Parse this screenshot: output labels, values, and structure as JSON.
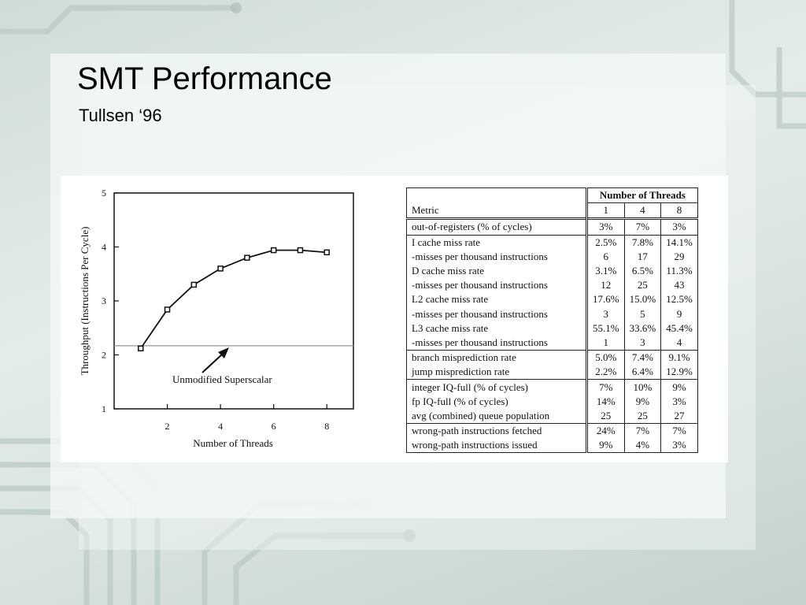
{
  "slide": {
    "title": "SMT Performance",
    "subtitle": "Tullsen ‘96"
  },
  "chart_data": {
    "type": "line",
    "xlabel": "Number of Threads",
    "ylabel": "Throughput (Instructions Per Cycle)",
    "xlim": [
      0,
      9
    ],
    "ylim": [
      1,
      5
    ],
    "xticks": [
      2,
      4,
      6,
      8
    ],
    "yticks": [
      1,
      2,
      3,
      4,
      5
    ],
    "series": [
      {
        "x": [
          1,
          2,
          3,
          4,
          5,
          6,
          7,
          8
        ],
        "values": [
          2.12,
          2.84,
          3.3,
          3.6,
          3.8,
          3.94,
          3.94,
          3.9
        ]
      }
    ],
    "reference_line": {
      "y": 2.17,
      "label": "Unmodified Superscalar"
    },
    "grid": false
  },
  "table": {
    "header_group": "Number of Threads",
    "metric_header": "Metric",
    "thread_cols": [
      "1",
      "4",
      "8"
    ],
    "groups": [
      {
        "rows": [
          {
            "metric": "out-of-registers (% of cycles)",
            "values": [
              "3%",
              "7%",
              "3%"
            ]
          }
        ]
      },
      {
        "rows": [
          {
            "metric": "I cache miss rate",
            "values": [
              "2.5%",
              "7.8%",
              "14.1%"
            ]
          },
          {
            "metric": "-misses per thousand instructions",
            "values": [
              "6",
              "17",
              "29"
            ]
          },
          {
            "metric": "D cache miss rate",
            "values": [
              "3.1%",
              "6.5%",
              "11.3%"
            ]
          },
          {
            "metric": "-misses per thousand instructions",
            "values": [
              "12",
              "25",
              "43"
            ]
          },
          {
            "metric": "L2 cache miss rate",
            "values": [
              "17.6%",
              "15.0%",
              "12.5%"
            ]
          },
          {
            "metric": "-misses per thousand instructions",
            "values": [
              "3",
              "5",
              "9"
            ]
          },
          {
            "metric": "L3 cache miss rate",
            "values": [
              "55.1%",
              "33.6%",
              "45.4%"
            ]
          },
          {
            "metric": "-misses per thousand instructions",
            "values": [
              "1",
              "3",
              "4"
            ]
          }
        ]
      },
      {
        "rows": [
          {
            "metric": "branch misprediction rate",
            "values": [
              "5.0%",
              "7.4%",
              "9.1%"
            ]
          },
          {
            "metric": "jump misprediction rate",
            "values": [
              "2.2%",
              "6.4%",
              "12.9%"
            ]
          }
        ]
      },
      {
        "rows": [
          {
            "metric": "integer IQ-full (% of cycles)",
            "values": [
              "7%",
              "10%",
              "9%"
            ]
          },
          {
            "metric": "fp IQ-full (% of cycles)",
            "values": [
              "14%",
              "9%",
              "3%"
            ]
          },
          {
            "metric": "avg (combined) queue population",
            "values": [
              "25",
              "25",
              "27"
            ]
          }
        ]
      },
      {
        "rows": [
          {
            "metric": "wrong-path instructions fetched",
            "values": [
              "24%",
              "7%",
              "7%"
            ]
          },
          {
            "metric": "wrong-path instructions issued",
            "values": [
              "9%",
              "4%",
              "3%"
            ]
          }
        ]
      }
    ]
  },
  "colors": {
    "background": "#d5e0dc",
    "panel": "#f3f7f5",
    "ink": "#111111",
    "reference_line": "#999999"
  }
}
